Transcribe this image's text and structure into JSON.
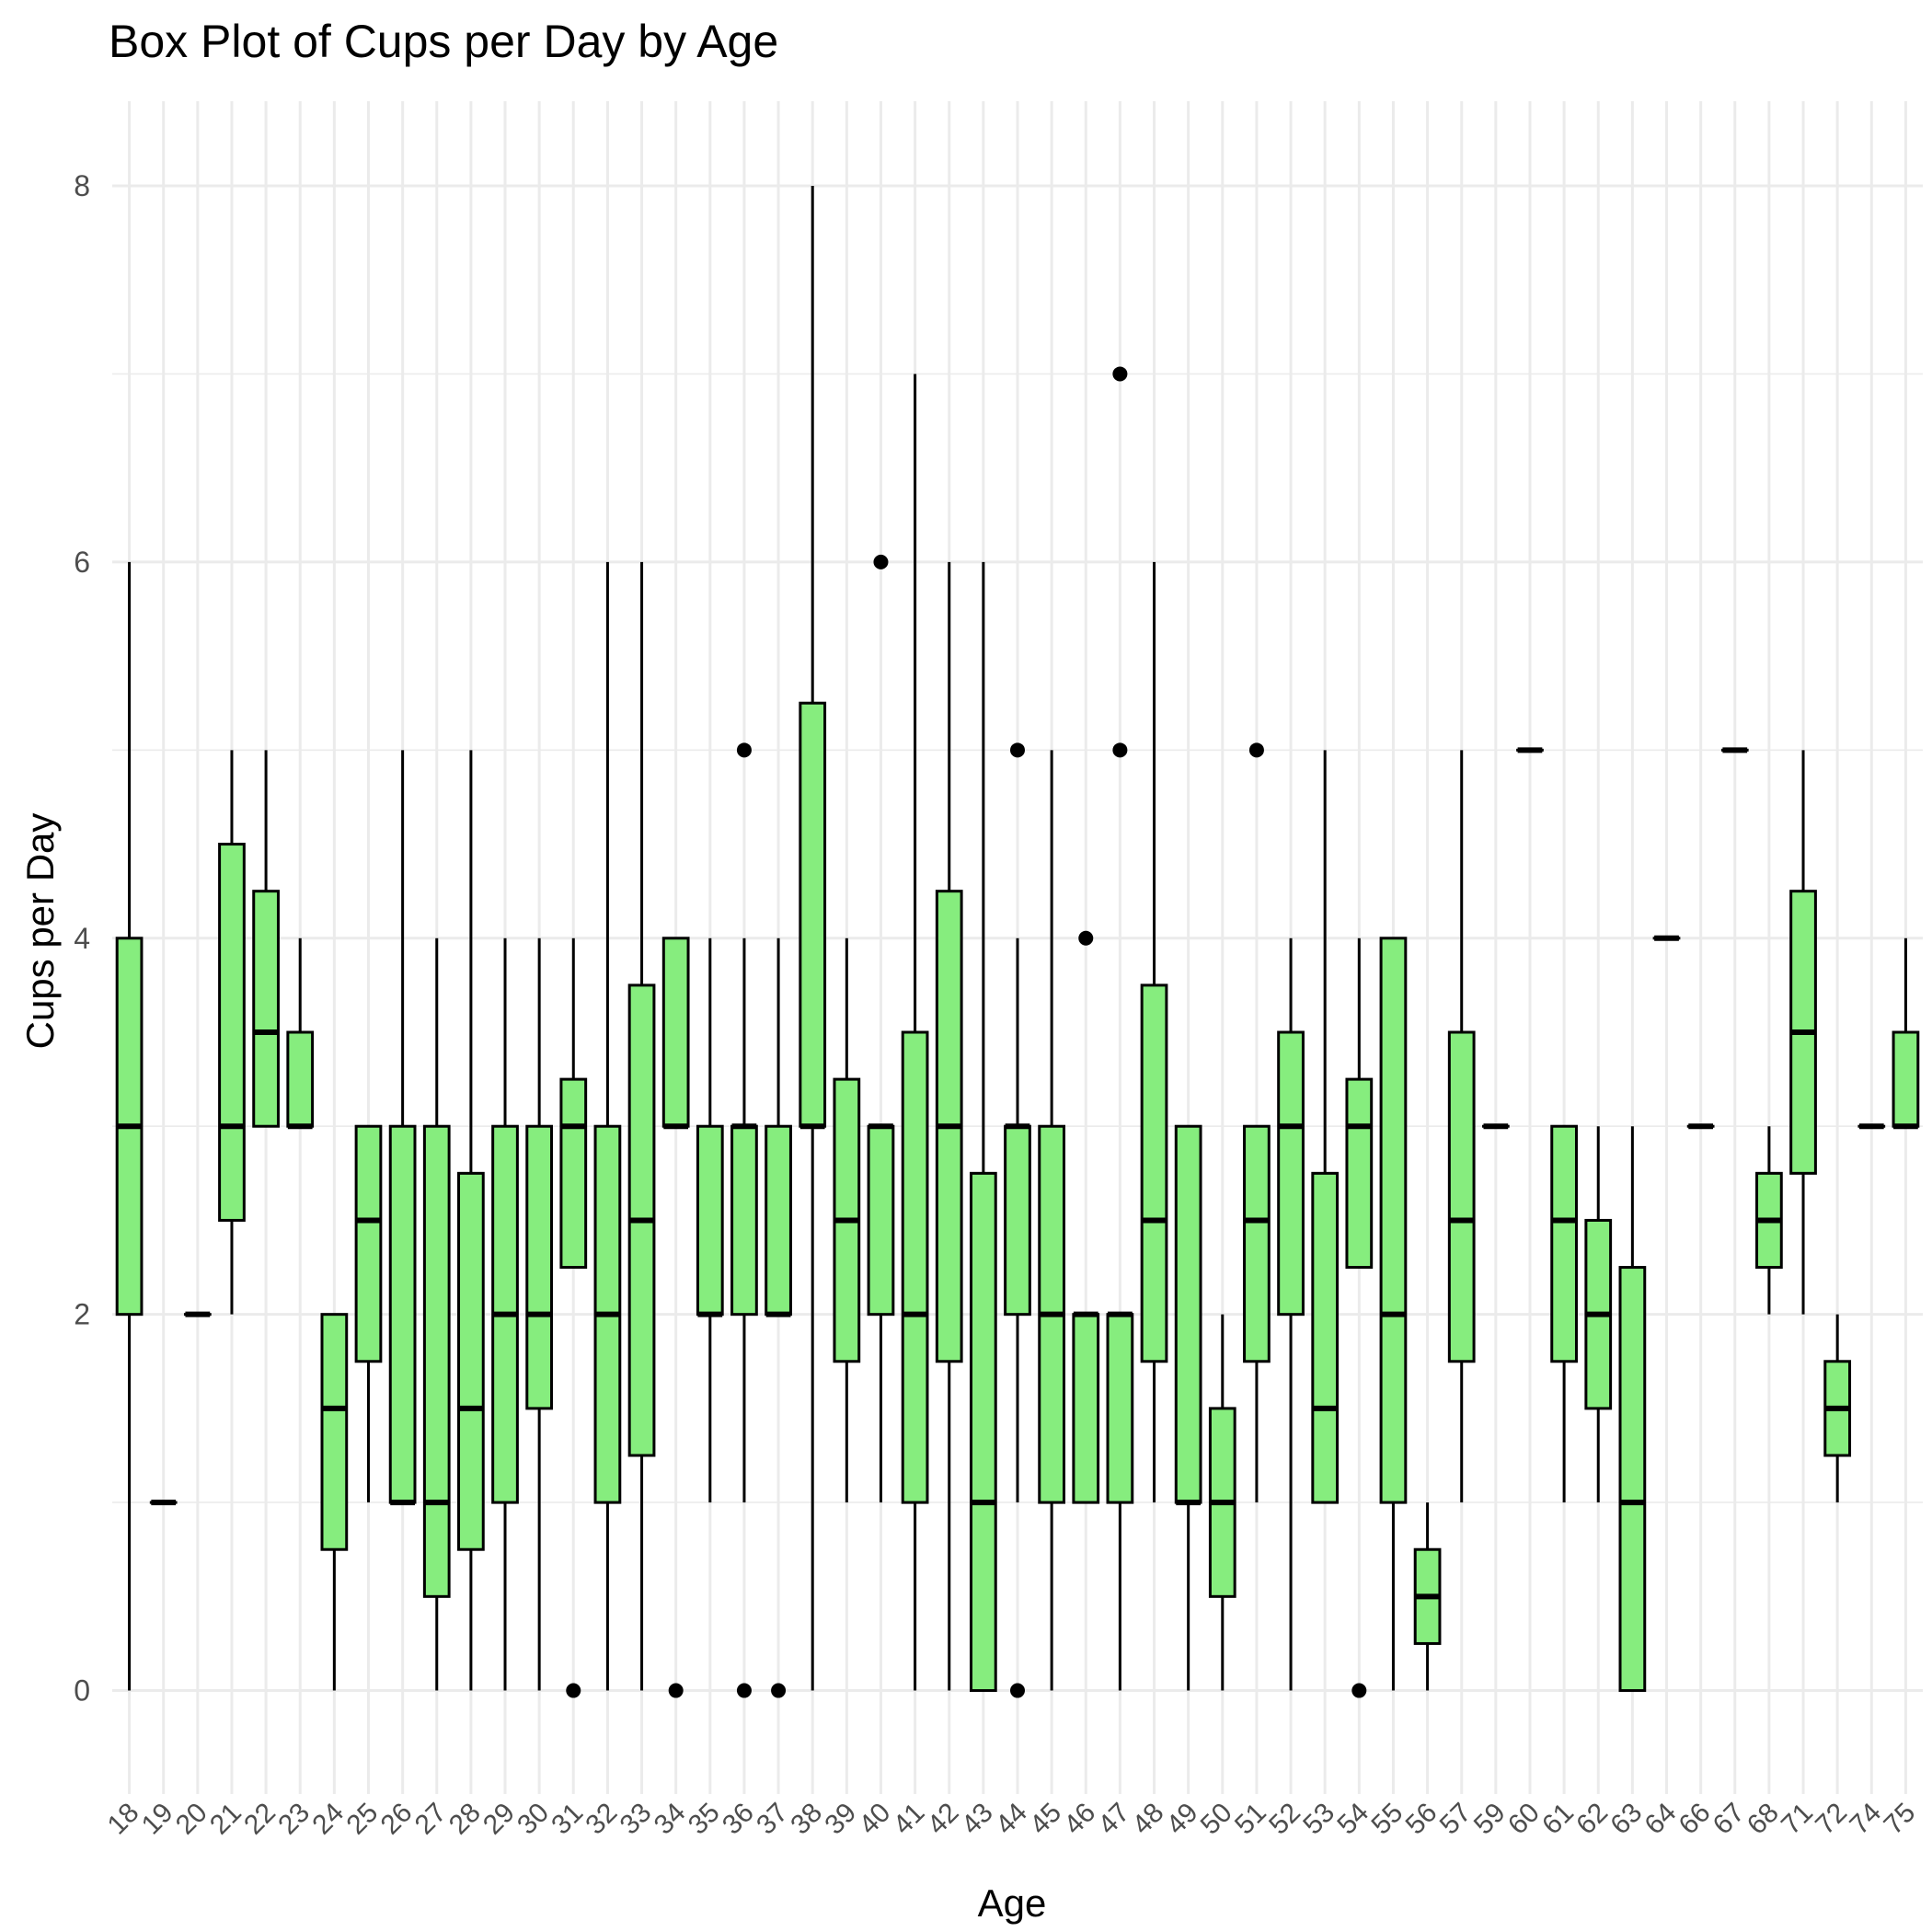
{
  "chart_data": {
    "type": "box",
    "title": "Box Plot of Cups per Day by Age",
    "xlabel": "Age",
    "ylabel": "Cups per Day",
    "ylim": [
      -0.55,
      8.45
    ],
    "yticks": [
      0,
      2,
      4,
      6,
      8
    ],
    "grid": true,
    "fill_color": "#86ed7e",
    "categories": [
      "18",
      "19",
      "20",
      "21",
      "22",
      "23",
      "24",
      "25",
      "26",
      "27",
      "28",
      "29",
      "30",
      "31",
      "32",
      "33",
      "34",
      "35",
      "36",
      "37",
      "38",
      "39",
      "40",
      "41",
      "42",
      "43",
      "44",
      "45",
      "46",
      "47",
      "48",
      "49",
      "50",
      "51",
      "52",
      "53",
      "54",
      "55",
      "56",
      "57",
      "59",
      "60",
      "61",
      "62",
      "63",
      "64",
      "66",
      "67",
      "68",
      "71",
      "72",
      "74",
      "75"
    ],
    "boxes": [
      {
        "min": 0,
        "q1": 2,
        "median": 3,
        "q3": 4,
        "max": 6,
        "outliers": []
      },
      {
        "min": 1,
        "q1": 1,
        "median": 1,
        "q3": 1,
        "max": 1,
        "outliers": []
      },
      {
        "min": 2,
        "q1": 2,
        "median": 2,
        "q3": 2,
        "max": 2,
        "outliers": []
      },
      {
        "min": 2,
        "q1": 2.5,
        "median": 3,
        "q3": 4.5,
        "max": 5,
        "outliers": []
      },
      {
        "min": 3,
        "q1": 3,
        "median": 3.5,
        "q3": 4.25,
        "max": 5,
        "outliers": []
      },
      {
        "min": 3,
        "q1": 3,
        "median": 3,
        "q3": 3.5,
        "max": 4,
        "outliers": []
      },
      {
        "min": 0,
        "q1": 0.75,
        "median": 1.5,
        "q3": 2,
        "max": 2,
        "outliers": []
      },
      {
        "min": 1,
        "q1": 1.75,
        "median": 2.5,
        "q3": 3,
        "max": 3,
        "outliers": []
      },
      {
        "min": 1,
        "q1": 1,
        "median": 1,
        "q3": 3,
        "max": 5,
        "outliers": []
      },
      {
        "min": 0,
        "q1": 0.5,
        "median": 1,
        "q3": 3,
        "max": 4,
        "outliers": []
      },
      {
        "min": 0,
        "q1": 0.75,
        "median": 1.5,
        "q3": 2.75,
        "max": 5,
        "outliers": []
      },
      {
        "min": 0,
        "q1": 1,
        "median": 2,
        "q3": 3,
        "max": 4,
        "outliers": []
      },
      {
        "min": 0,
        "q1": 1.5,
        "median": 2,
        "q3": 3,
        "max": 4,
        "outliers": []
      },
      {
        "min": 2.25,
        "q1": 2.25,
        "median": 3,
        "q3": 3.25,
        "max": 4,
        "outliers": [
          0
        ]
      },
      {
        "min": 0,
        "q1": 1,
        "median": 2,
        "q3": 3,
        "max": 6,
        "outliers": []
      },
      {
        "min": 0,
        "q1": 1.25,
        "median": 2.5,
        "q3": 3.75,
        "max": 6,
        "outliers": []
      },
      {
        "min": 3,
        "q1": 3,
        "median": 3,
        "q3": 4,
        "max": 4,
        "outliers": [
          0
        ]
      },
      {
        "min": 1,
        "q1": 2,
        "median": 2,
        "q3": 3,
        "max": 4,
        "outliers": []
      },
      {
        "min": 1,
        "q1": 2,
        "median": 3,
        "q3": 3,
        "max": 4,
        "outliers": [
          5,
          0
        ]
      },
      {
        "min": 2,
        "q1": 2,
        "median": 2,
        "q3": 3,
        "max": 4,
        "outliers": [
          0
        ]
      },
      {
        "min": 0,
        "q1": 3,
        "median": 3,
        "q3": 5.25,
        "max": 8,
        "outliers": []
      },
      {
        "min": 1,
        "q1": 1.75,
        "median": 2.5,
        "q3": 3.25,
        "max": 4,
        "outliers": []
      },
      {
        "min": 1,
        "q1": 2,
        "median": 3,
        "q3": 3,
        "max": 3,
        "outliers": [
          6
        ]
      },
      {
        "min": 0,
        "q1": 1,
        "median": 2,
        "q3": 3.5,
        "max": 7,
        "outliers": []
      },
      {
        "min": 0,
        "q1": 1.75,
        "median": 3,
        "q3": 4.25,
        "max": 6,
        "outliers": []
      },
      {
        "min": 0,
        "q1": 0,
        "median": 1,
        "q3": 2.75,
        "max": 6,
        "outliers": []
      },
      {
        "min": 1,
        "q1": 2,
        "median": 3,
        "q3": 3,
        "max": 4,
        "outliers": [
          5,
          0
        ]
      },
      {
        "min": 0,
        "q1": 1,
        "median": 2,
        "q3": 3,
        "max": 5,
        "outliers": []
      },
      {
        "min": 1,
        "q1": 1,
        "median": 2,
        "q3": 2,
        "max": 2,
        "outliers": [
          4
        ]
      },
      {
        "min": 0,
        "q1": 1,
        "median": 2,
        "q3": 2,
        "max": 2,
        "outliers": [
          7,
          5
        ]
      },
      {
        "min": 1,
        "q1": 1.75,
        "median": 2.5,
        "q3": 3.75,
        "max": 6,
        "outliers": []
      },
      {
        "min": 0,
        "q1": 1,
        "median": 1,
        "q3": 3,
        "max": 3,
        "outliers": []
      },
      {
        "min": 0,
        "q1": 0.5,
        "median": 1,
        "q3": 1.5,
        "max": 2,
        "outliers": []
      },
      {
        "min": 1,
        "q1": 1.75,
        "median": 2.5,
        "q3": 3,
        "max": 3,
        "outliers": [
          5
        ]
      },
      {
        "min": 0,
        "q1": 2,
        "median": 3,
        "q3": 3.5,
        "max": 4,
        "outliers": []
      },
      {
        "min": 1,
        "q1": 1,
        "median": 1.5,
        "q3": 2.75,
        "max": 5,
        "outliers": []
      },
      {
        "min": 2.25,
        "q1": 2.25,
        "median": 3,
        "q3": 3.25,
        "max": 4,
        "outliers": [
          0
        ]
      },
      {
        "min": 0,
        "q1": 1,
        "median": 2,
        "q3": 4,
        "max": 4,
        "outliers": []
      },
      {
        "min": 0,
        "q1": 0.25,
        "median": 0.5,
        "q3": 0.75,
        "max": 1,
        "outliers": []
      },
      {
        "min": 1,
        "q1": 1.75,
        "median": 2.5,
        "q3": 3.5,
        "max": 5,
        "outliers": []
      },
      {
        "min": 3,
        "q1": 3,
        "median": 3,
        "q3": 3,
        "max": 3,
        "outliers": []
      },
      {
        "min": 5,
        "q1": 5,
        "median": 5,
        "q3": 5,
        "max": 5,
        "outliers": []
      },
      {
        "min": 1,
        "q1": 1.75,
        "median": 2.5,
        "q3": 3,
        "max": 3,
        "outliers": []
      },
      {
        "min": 1,
        "q1": 1.5,
        "median": 2,
        "q3": 2.5,
        "max": 3,
        "outliers": []
      },
      {
        "min": 0,
        "q1": 0,
        "median": 1,
        "q3": 2.25,
        "max": 3,
        "outliers": []
      },
      {
        "min": 4,
        "q1": 4,
        "median": 4,
        "q3": 4,
        "max": 4,
        "outliers": []
      },
      {
        "min": 3,
        "q1": 3,
        "median": 3,
        "q3": 3,
        "max": 3,
        "outliers": []
      },
      {
        "min": 5,
        "q1": 5,
        "median": 5,
        "q3": 5,
        "max": 5,
        "outliers": []
      },
      {
        "min": 2,
        "q1": 2.25,
        "median": 2.5,
        "q3": 2.75,
        "max": 3,
        "outliers": []
      },
      {
        "min": 2,
        "q1": 2.75,
        "median": 3.5,
        "q3": 4.25,
        "max": 5,
        "outliers": []
      },
      {
        "min": 1,
        "q1": 1.25,
        "median": 1.5,
        "q3": 1.75,
        "max": 2,
        "outliers": []
      },
      {
        "min": 3,
        "q1": 3,
        "median": 3,
        "q3": 3,
        "max": 3,
        "outliers": []
      },
      {
        "min": 3,
        "q1": 3,
        "median": 3,
        "q3": 3.5,
        "max": 4,
        "outliers": []
      }
    ]
  }
}
